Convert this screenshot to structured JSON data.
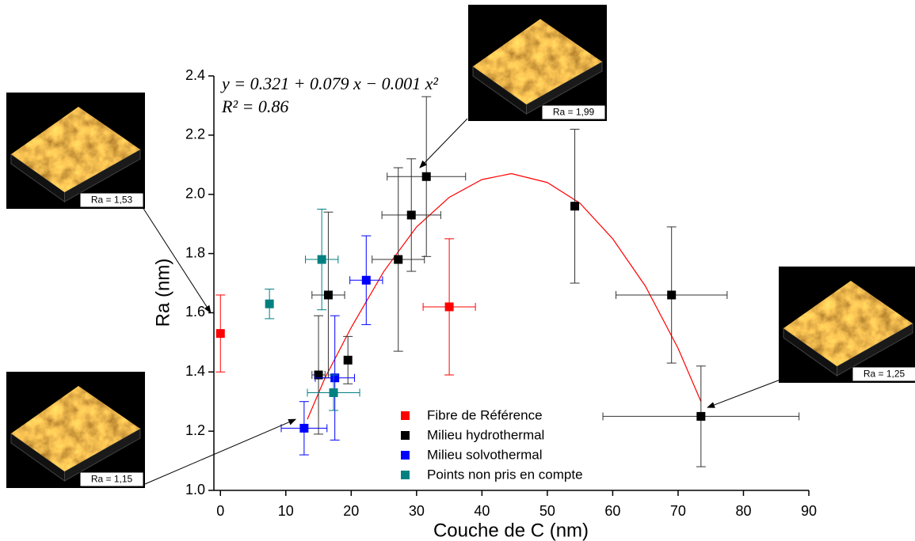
{
  "chart_data": {
    "type": "scatter",
    "x_label": "Couche de C (nm)",
    "y_label": "Ra (nm)",
    "equation": "y = 0.321 + 0.079 x − 0.001 x²",
    "r_squared": "R² = 0.86",
    "xlim": [
      -1,
      90
    ],
    "ylim": [
      1.0,
      2.4
    ],
    "xticks": [
      0,
      10,
      20,
      30,
      40,
      50,
      60,
      70,
      80,
      90
    ],
    "yticks": [
      {
        "value": 1.0,
        "label": "1.0"
      },
      {
        "value": 1.2,
        "label": "1.2"
      },
      {
        "value": 1.4,
        "label": "1.4"
      },
      {
        "value": 1.6,
        "label": "1.6"
      },
      {
        "value": 1.8,
        "label": "1.8"
      },
      {
        "value": 2.0,
        "label": "2.0"
      },
      {
        "value": 2.2,
        "label": "2.2"
      },
      {
        "value": 2.4,
        "label": "2.4"
      }
    ],
    "series": [
      {
        "name": "Fibre de Référence",
        "color": "#ff0000",
        "x": [
          0,
          35
        ],
        "values": [
          1.53,
          1.62
        ],
        "yerr": [
          0.13,
          0.23
        ],
        "xerr": [
          0,
          4
        ]
      },
      {
        "name": "Milieu hydrothermal",
        "color": "#000000",
        "x": [
          15,
          16.5,
          19.5,
          27.2,
          29.2,
          31.5,
          54.2,
          69,
          73.5
        ],
        "values": [
          1.39,
          1.66,
          1.44,
          1.78,
          1.93,
          2.06,
          1.96,
          1.66,
          1.25
        ],
        "yerr": [
          0.2,
          0.28,
          0.08,
          0.31,
          0.19,
          0.27,
          0.26,
          0.23,
          0.17
        ],
        "xerr": [
          1,
          2.5,
          0,
          4,
          4.5,
          6,
          0,
          8.5,
          15
        ]
      },
      {
        "name": "Milieu solvothermal",
        "color": "#0000ff",
        "x": [
          12.8,
          17.5,
          22.3
        ],
        "values": [
          1.21,
          1.38,
          1.71
        ],
        "yerr": [
          0.09,
          0.21,
          0.15
        ],
        "xerr": [
          3.5,
          3,
          2.5
        ]
      },
      {
        "name": "Points non pris en compte",
        "color": "#008080",
        "x": [
          7.5,
          15.5,
          17.3
        ],
        "values": [
          1.63,
          1.78,
          1.33
        ],
        "yerr": [
          0.05,
          0.17,
          0.06
        ],
        "xerr": [
          0,
          2.5,
          4
        ]
      }
    ],
    "fit": {
      "color": "#ff0000",
      "x": [
        13.3,
        16,
        20,
        25,
        30,
        35,
        40,
        44.5,
        50,
        55,
        60,
        65,
        70,
        73.5
      ],
      "values": [
        1.24,
        1.38,
        1.55,
        1.74,
        1.89,
        1.99,
        2.05,
        2.07,
        2.04,
        1.97,
        1.85,
        1.69,
        1.48,
        1.3
      ]
    },
    "annotations": [
      {
        "text": "Ra = 1,53",
        "target_x": -1.5,
        "target_y": 1.6
      },
      {
        "text": "Ra = 1,99",
        "target_x": 30.5,
        "target_y": 2.09
      },
      {
        "text": "Ra = 1,25",
        "target_x": 74.5,
        "target_y": 1.28
      },
      {
        "text": "Ra = 1,15",
        "target_x": 11.5,
        "target_y": 1.24
      }
    ]
  }
}
